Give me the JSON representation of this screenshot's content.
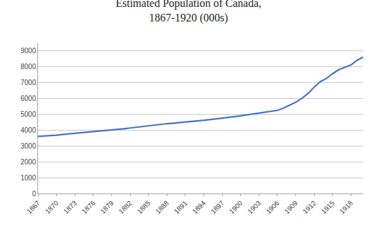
{
  "chart_data": {
    "type": "line",
    "title": "Estimated Population of Canada,\n1867-1920 (000s)",
    "x": [
      1867,
      1868,
      1869,
      1870,
      1871,
      1872,
      1873,
      1874,
      1875,
      1876,
      1877,
      1878,
      1879,
      1880,
      1881,
      1882,
      1883,
      1884,
      1885,
      1886,
      1887,
      1888,
      1889,
      1890,
      1891,
      1892,
      1893,
      1894,
      1895,
      1896,
      1897,
      1898,
      1899,
      1900,
      1901,
      1902,
      1903,
      1904,
      1905,
      1906,
      1907,
      1908,
      1909,
      1910,
      1911,
      1912,
      1913,
      1914,
      1915,
      1916,
      1917,
      1918,
      1919,
      1920
    ],
    "values": [
      3600,
      3620,
      3640,
      3680,
      3720,
      3760,
      3800,
      3850,
      3880,
      3910,
      3940,
      3970,
      4000,
      4030,
      4080,
      4130,
      4180,
      4230,
      4270,
      4310,
      4360,
      4400,
      4430,
      4460,
      4490,
      4530,
      4570,
      4610,
      4660,
      4700,
      4740,
      4790,
      4840,
      4900,
      4960,
      5010,
      5060,
      5110,
      5170,
      5240,
      5380,
      5560,
      5750,
      6000,
      6300,
      6700,
      7050,
      7250,
      7550,
      7800,
      7950,
      8100,
      8400,
      8600
    ],
    "color": "#4472C4",
    "xlim": [
      1867,
      1920
    ],
    "xticks": [
      1867,
      1870,
      1873,
      1876,
      1879,
      1882,
      1885,
      1888,
      1891,
      1894,
      1897,
      1900,
      1903,
      1906,
      1909,
      1912,
      1915,
      1918
    ],
    "ylim": [
      0,
      9500
    ],
    "yticks": [
      0,
      1000,
      2000,
      3000,
      4000,
      5000,
      6000,
      7000,
      8000,
      9000
    ],
    "grid": true
  }
}
